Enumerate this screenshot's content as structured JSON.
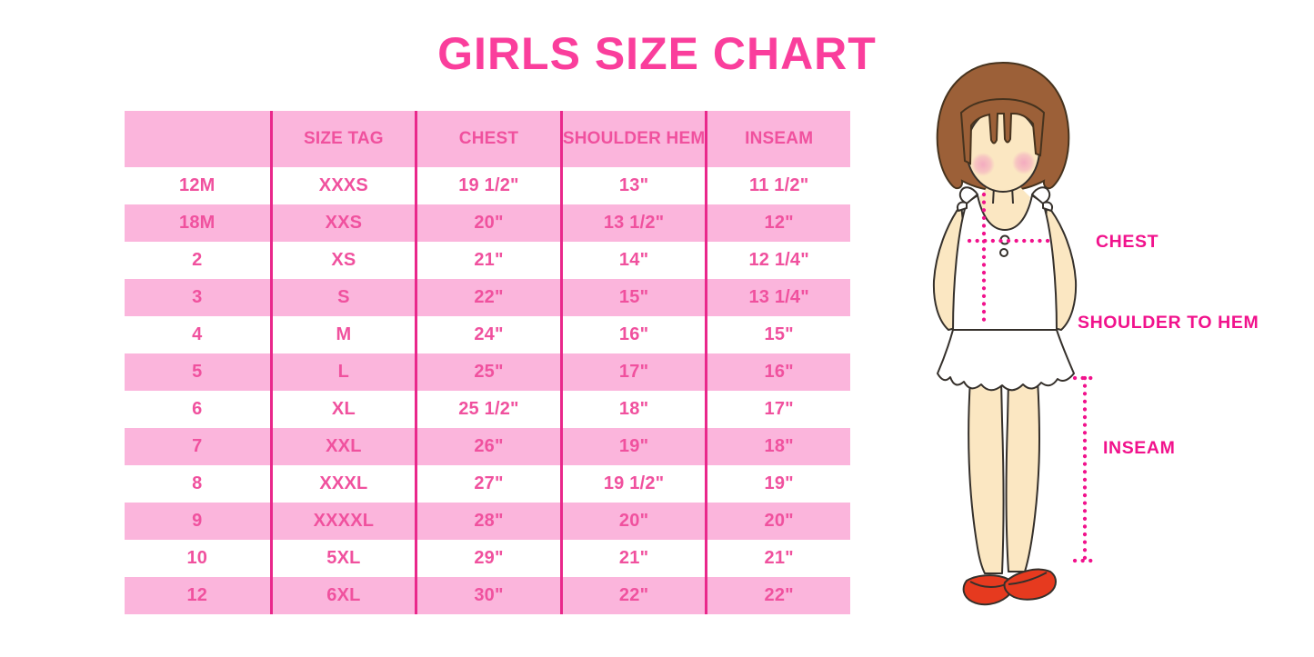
{
  "title": "GIRLS SIZE CHART",
  "colors": {
    "title_pink": "#FA3E9C",
    "row_pink": "#FBB5DC",
    "grid_line_magenta": "#E9288B",
    "table_text_pink": "#F0519E",
    "figure_label_magenta": "#F1128C",
    "hair_brown": "#9C6038",
    "skin_tone": "#FBE7C2",
    "shoe_red": "#E63A1F"
  },
  "table": {
    "headers": [
      "",
      "SIZE TAG",
      "CHEST",
      "SHOULDER HEM",
      "INSEAM"
    ],
    "rows": [
      [
        "12M",
        "XXXS",
        "19 1/2\"",
        "13\"",
        "11 1/2\""
      ],
      [
        "18M",
        "XXS",
        "20\"",
        "13 1/2\"",
        "12\""
      ],
      [
        "2",
        "XS",
        "21\"",
        "14\"",
        "12 1/4\""
      ],
      [
        "3",
        "S",
        "22\"",
        "15\"",
        "13 1/4\""
      ],
      [
        "4",
        "M",
        "24\"",
        "16\"",
        "15\""
      ],
      [
        "5",
        "L",
        "25\"",
        "17\"",
        "16\""
      ],
      [
        "6",
        "XL",
        "25 1/2\"",
        "18\"",
        "17\""
      ],
      [
        "7",
        "XXL",
        "26\"",
        "19\"",
        "18\""
      ],
      [
        "8",
        "XXXL",
        "27\"",
        "19 1/2\"",
        "19\""
      ],
      [
        "9",
        "XXXXL",
        "28\"",
        "20\"",
        "20\""
      ],
      [
        "10",
        "5XL",
        "29\"",
        "21\"",
        "21\""
      ],
      [
        "12",
        "6XL",
        "30\"",
        "22\"",
        "22\""
      ]
    ]
  },
  "figure": {
    "chest_label": "CHEST",
    "shoulder_to_hem_label": "SHOULDER TO HEM",
    "inseam_label": "INSEAM"
  }
}
